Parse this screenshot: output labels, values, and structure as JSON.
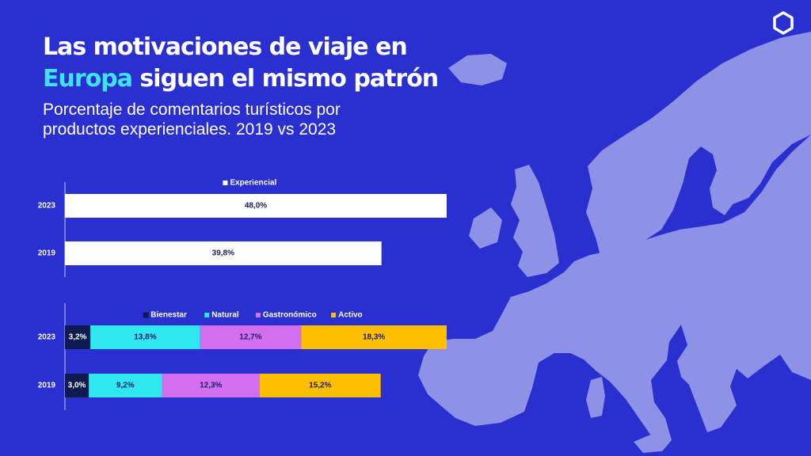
{
  "header": {
    "title_line1": "Las motivaciones de viaje en",
    "title_highlight": "Europa",
    "title_rest": " siguen el mismo patrón",
    "subtitle_line1": "Porcentaje de comentarios turísticos por",
    "subtitle_line2": "productos experienciales. 2019 vs 2023",
    "logo_icon": "hexagon-logo-icon"
  },
  "colors": {
    "background": "#2a2fd0",
    "map": "#8e92e6",
    "title_highlight": "#3fe3f0",
    "experiencial": "#ffffff",
    "bienestar": "#0f1a4f",
    "natural": "#2ee8ee",
    "gastronomico": "#d36ef0",
    "activo": "#ffbe00"
  },
  "chart_data": [
    {
      "type": "bar",
      "orientation": "horizontal",
      "categories": [
        "2023",
        "2019"
      ],
      "series": [
        {
          "name": "Experiencial",
          "values": [
            48.0,
            39.8
          ],
          "labels": [
            "48,0%",
            "39,8%"
          ],
          "color": "#ffffff"
        }
      ],
      "legend": "top",
      "xlim": [
        0,
        48.0
      ]
    },
    {
      "type": "bar",
      "orientation": "horizontal",
      "stacked": true,
      "categories": [
        "2023",
        "2019"
      ],
      "series": [
        {
          "name": "Bienestar",
          "values": [
            3.2,
            3.0
          ],
          "labels": [
            "3,2%",
            "3,0%"
          ],
          "color": "#0f1a4f"
        },
        {
          "name": "Natural",
          "values": [
            13.8,
            9.2
          ],
          "labels": [
            "13,8%",
            "9,2%"
          ],
          "color": "#2ee8ee"
        },
        {
          "name": "Gastronómico",
          "values": [
            12.7,
            12.3
          ],
          "labels": [
            "12,7%",
            "12,3%"
          ],
          "color": "#d36ef0"
        },
        {
          "name": "Activo",
          "values": [
            18.3,
            15.2
          ],
          "labels": [
            "18,3%",
            "15,2%"
          ],
          "color": "#ffbe00"
        }
      ],
      "legend": "top",
      "xlim": [
        0,
        48.0
      ]
    }
  ]
}
